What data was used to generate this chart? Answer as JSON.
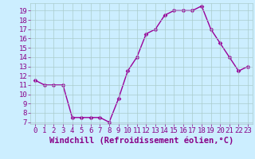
{
  "x": [
    0,
    1,
    2,
    3,
    4,
    5,
    6,
    7,
    8,
    9,
    10,
    11,
    12,
    13,
    14,
    15,
    16,
    17,
    18,
    19,
    20,
    21,
    22,
    23
  ],
  "y": [
    11.5,
    11,
    11,
    11,
    7.5,
    7.5,
    7.5,
    7.5,
    7,
    9.5,
    12.5,
    14,
    16.5,
    17,
    18.5,
    19,
    19,
    19,
    19.5,
    17,
    15.5,
    14,
    12.5,
    13
  ],
  "line_color": "#990099",
  "marker": "D",
  "marker_size": 2.5,
  "bg_color": "#cceeff",
  "grid_color": "#aacccc",
  "xlabel": "Windchill (Refroidissement éolien,°C)",
  "ylim_min": 6.8,
  "ylim_max": 19.8,
  "xlim_min": -0.5,
  "xlim_max": 23.5,
  "yticks": [
    7,
    8,
    9,
    10,
    11,
    12,
    13,
    14,
    15,
    16,
    17,
    18,
    19
  ],
  "xticks": [
    0,
    1,
    2,
    3,
    4,
    5,
    6,
    7,
    8,
    9,
    10,
    11,
    12,
    13,
    14,
    15,
    16,
    17,
    18,
    19,
    20,
    21,
    22,
    23
  ],
  "tick_color": "#880088",
  "label_color": "#880088",
  "xlabel_fontsize": 7.5,
  "tick_fontsize": 6.5,
  "linewidth": 1.0
}
